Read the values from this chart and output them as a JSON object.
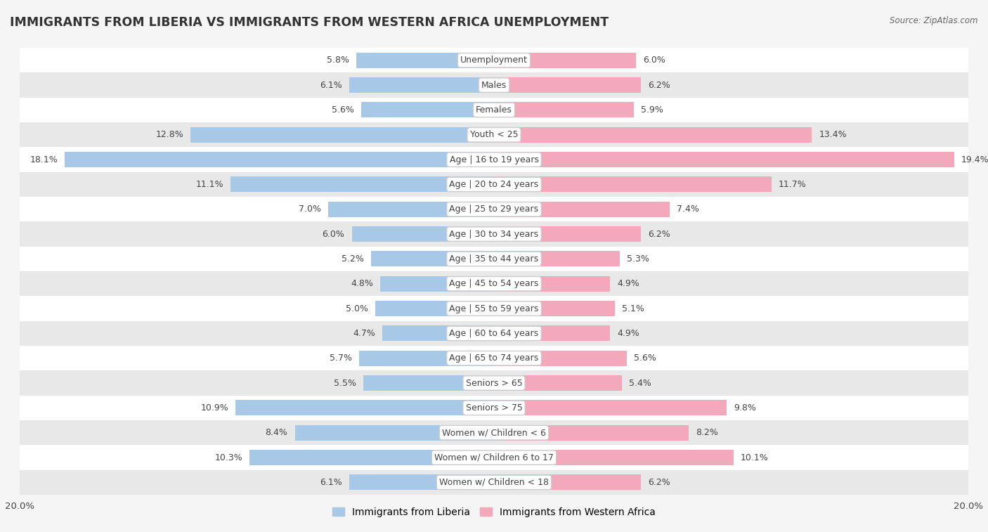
{
  "title": "IMMIGRANTS FROM LIBERIA VS IMMIGRANTS FROM WESTERN AFRICA UNEMPLOYMENT",
  "source": "Source: ZipAtlas.com",
  "categories": [
    "Unemployment",
    "Males",
    "Females",
    "Youth < 25",
    "Age | 16 to 19 years",
    "Age | 20 to 24 years",
    "Age | 25 to 29 years",
    "Age | 30 to 34 years",
    "Age | 35 to 44 years",
    "Age | 45 to 54 years",
    "Age | 55 to 59 years",
    "Age | 60 to 64 years",
    "Age | 65 to 74 years",
    "Seniors > 65",
    "Seniors > 75",
    "Women w/ Children < 6",
    "Women w/ Children 6 to 17",
    "Women w/ Children < 18"
  ],
  "liberia_values": [
    5.8,
    6.1,
    5.6,
    12.8,
    18.1,
    11.1,
    7.0,
    6.0,
    5.2,
    4.8,
    5.0,
    4.7,
    5.7,
    5.5,
    10.9,
    8.4,
    10.3,
    6.1
  ],
  "western_africa_values": [
    6.0,
    6.2,
    5.9,
    13.4,
    19.4,
    11.7,
    7.4,
    6.2,
    5.3,
    4.9,
    5.1,
    4.9,
    5.6,
    5.4,
    9.8,
    8.2,
    10.1,
    6.2
  ],
  "liberia_color": "#a8c8e8",
  "western_africa_color": "#f4a8bc",
  "background_color": "#f5f5f5",
  "row_color_light": "#ffffff",
  "row_color_dark": "#e8e8e8",
  "xlim": 20.0,
  "bar_height": 0.62,
  "label_fontsize": 9.0,
  "title_fontsize": 12.5,
  "legend_labels": [
    "Immigrants from Liberia",
    "Immigrants from Western Africa"
  ]
}
